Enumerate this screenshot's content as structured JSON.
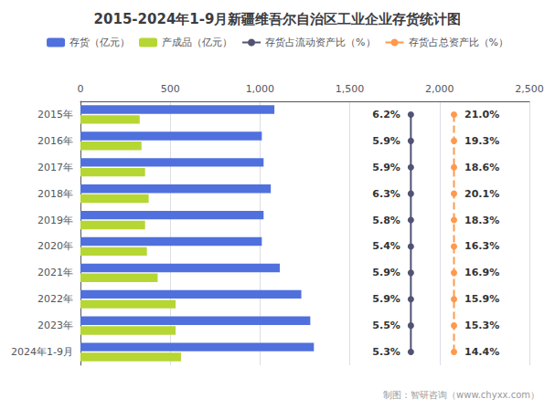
{
  "chart_data": {
    "type": "bar",
    "orientation": "horizontal",
    "title": "2015-2024年1-9月新疆维吾尔自治区工业企业存货统计图",
    "annotations": [
      "制图：智研咨询（www.chyxx.com）"
    ],
    "categories": [
      "2015年",
      "2016年",
      "2017年",
      "2018年",
      "2019年",
      "2020年",
      "2021年",
      "2022年",
      "2023年",
      "2024年1-9月"
    ],
    "series": [
      {
        "name": "存货（亿元）",
        "type": "bar",
        "values": [
          1080,
          1010,
          1020,
          1060,
          1020,
          1010,
          1110,
          1230,
          1280,
          1300
        ]
      },
      {
        "name": "产成品（亿元）",
        "type": "bar",
        "values": [
          330,
          340,
          360,
          380,
          360,
          370,
          430,
          530,
          530,
          560
        ]
      },
      {
        "name": "存货占流动资产比（%）",
        "type": "line",
        "line_style": "solid",
        "marker": "circle",
        "data_labels": true,
        "values": [
          6.2,
          5.9,
          5.9,
          6.3,
          5.8,
          5.4,
          5.9,
          5.9,
          5.5,
          5.3
        ],
        "value_labels": [
          "6.2%",
          "5.9%",
          "5.9%",
          "6.3%",
          "5.8%",
          "5.4%",
          "5.9%",
          "5.9%",
          "5.5%",
          "5.3%"
        ]
      },
      {
        "name": "存货占总资产比（%）",
        "type": "line",
        "line_style": "dashed",
        "marker": "circle",
        "data_labels": true,
        "values": [
          21.0,
          19.3,
          18.6,
          20.1,
          18.3,
          16.3,
          16.9,
          15.9,
          15.3,
          14.4
        ],
        "value_labels": [
          "21.0%",
          "19.3%",
          "18.6%",
          "20.1%",
          "18.3%",
          "16.3%",
          "16.9%",
          "15.9%",
          "15.3%",
          "14.4%"
        ]
      }
    ],
    "xlim": [
      0,
      2500
    ],
    "xticks": [
      0,
      500,
      1000,
      1500,
      2000,
      2500
    ],
    "grid": true,
    "legend": "top"
  }
}
